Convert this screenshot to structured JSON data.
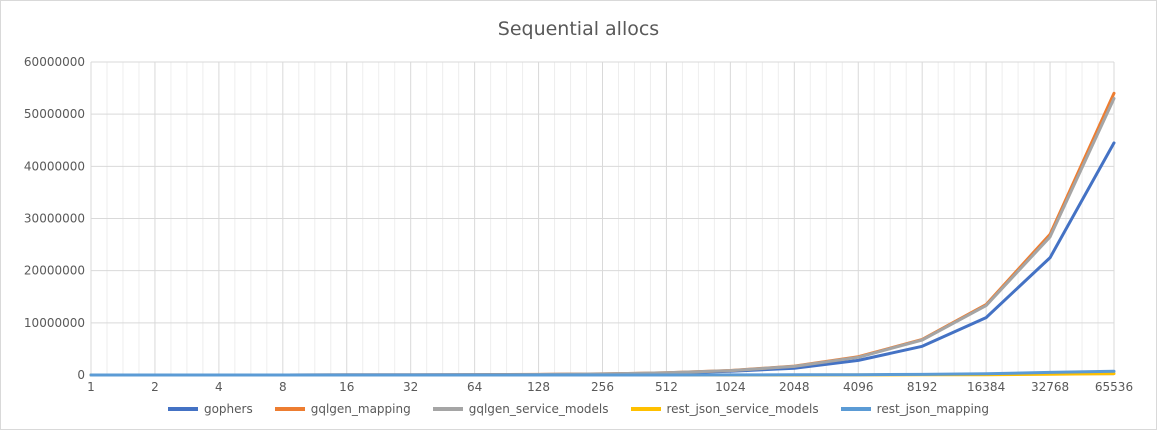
{
  "chart_data": {
    "type": "line",
    "title": "Sequential allocs",
    "xlabel": "",
    "ylabel": "",
    "categories": [
      "1",
      "2",
      "4",
      "8",
      "16",
      "32",
      "64",
      "128",
      "256",
      "512",
      "1024",
      "2048",
      "4096",
      "8192",
      "16384",
      "32768",
      "65536"
    ],
    "ylim": [
      0,
      60000000
    ],
    "yticks": [
      "0",
      "10000000",
      "20000000",
      "30000000",
      "40000000",
      "50000000",
      "60000000"
    ],
    "grid": true,
    "legend_position": "bottom",
    "series": [
      {
        "name": "gophers",
        "color": "#4472c4",
        "values": [
          700,
          1400,
          2800,
          5600,
          11000,
          22000,
          44000,
          88000,
          176000,
          352000,
          704000,
          1300000,
          2800000,
          5500000,
          11000000,
          22500000,
          44500000
        ]
      },
      {
        "name": "gqlgen_mapping",
        "color": "#ed7d31",
        "values": [
          850,
          1700,
          3400,
          6800,
          13500,
          27000,
          54000,
          108000,
          215000,
          430000,
          860000,
          1700000,
          3500000,
          6800000,
          13500000,
          27000000,
          54000000
        ]
      },
      {
        "name": "gqlgen_service_models",
        "color": "#a5a5a5",
        "values": [
          830,
          1660,
          3300,
          6600,
          13200,
          26400,
          53000,
          105000,
          210000,
          420000,
          840000,
          1650000,
          3400000,
          6700000,
          13300000,
          26500000,
          53000000
        ]
      },
      {
        "name": "rest_json_service_models",
        "color": "#ffc000",
        "values": [
          4,
          8,
          16,
          32,
          64,
          128,
          256,
          512,
          1024,
          2048,
          4096,
          8192,
          16384,
          32768,
          65536,
          131072,
          262144
        ]
      },
      {
        "name": "rest_json_mapping",
        "color": "#5b9bd5",
        "values": [
          15,
          30,
          60,
          120,
          240,
          480,
          960,
          1900,
          3800,
          7700,
          15000,
          31000,
          61000,
          123000,
          245000,
          491000,
          700000
        ]
      }
    ]
  }
}
